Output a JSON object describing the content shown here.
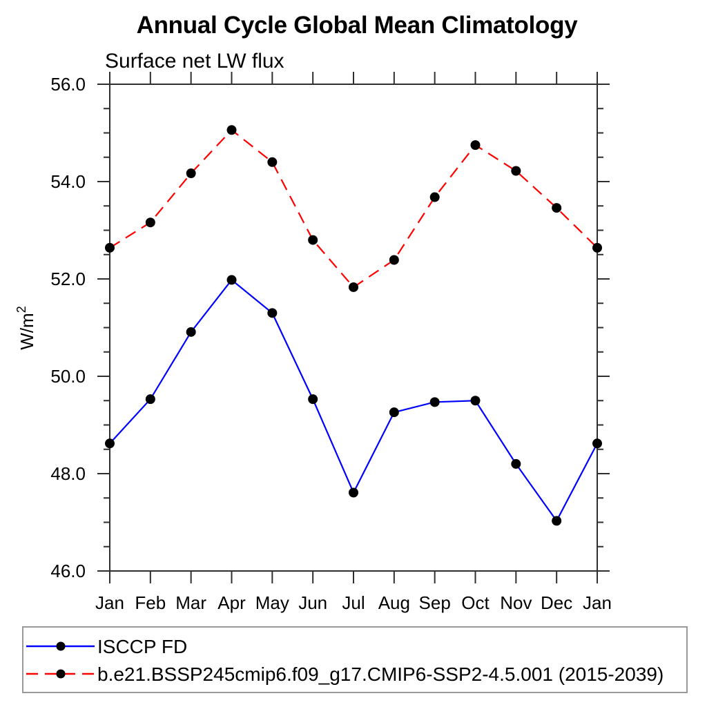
{
  "page": {
    "background": "#ffffff"
  },
  "chart_data": {
    "type": "line",
    "title": "Annual Cycle Global Mean Climatology",
    "subtitle": "Surface net LW flux",
    "ylabel": "W/m",
    "ylabel_superscript": "2",
    "x_tick_labels": [
      "Jan",
      "Feb",
      "Mar",
      "Apr",
      "May",
      "Jun",
      "Jul",
      "Aug",
      "Sep",
      "Oct",
      "Nov",
      "Dec",
      "Jan"
    ],
    "y_axis": {
      "ylim": [
        46.0,
        56.0
      ],
      "major_step": 2.0,
      "minor_step": 0.5,
      "tick_labels": [
        "46.0",
        "48.0",
        "50.0",
        "52.0",
        "54.0",
        "56.0"
      ]
    },
    "grid": "off",
    "axis_color": "#2e2e2e",
    "series": [
      {
        "name": "ISCCP FD",
        "color": "#0000ff",
        "line_style": "solid",
        "marker": "filled-circle",
        "marker_color": "#000000",
        "values": [
          48.62,
          49.53,
          50.91,
          51.98,
          51.3,
          49.53,
          47.61,
          49.26,
          49.47,
          49.5,
          48.2,
          47.03,
          48.62
        ]
      },
      {
        "name": "b.e21.BSSP245cmip6.f09_g17.CMIP6-SSP2-4.5.001 (2015-2039)",
        "color": "#ff0000",
        "line_style": "dashed",
        "marker": "filled-circle",
        "marker_color": "#000000",
        "values": [
          52.64,
          53.16,
          54.17,
          55.06,
          54.4,
          52.8,
          51.83,
          52.39,
          53.68,
          54.75,
          54.22,
          53.46,
          52.64
        ]
      }
    ],
    "legend": {
      "position": "bottom-left",
      "border_color": "#999999"
    }
  }
}
